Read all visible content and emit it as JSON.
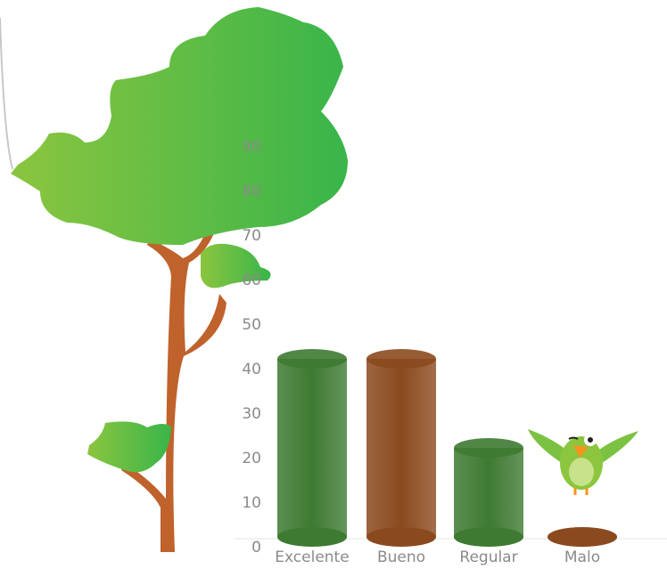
{
  "chart_data": {
    "type": "bar",
    "categories": [
      "Excelente",
      "Bueno",
      "Regular",
      "Malo"
    ],
    "values": [
      40,
      40,
      20,
      0
    ],
    "colors": [
      "#3e7a32",
      "#8b4a1e",
      "#3e7a32",
      "#8b4a1e"
    ],
    "ylim": [
      0,
      90
    ],
    "yticks": [
      0,
      10,
      20,
      30,
      40,
      50,
      60,
      70,
      80,
      90
    ]
  }
}
